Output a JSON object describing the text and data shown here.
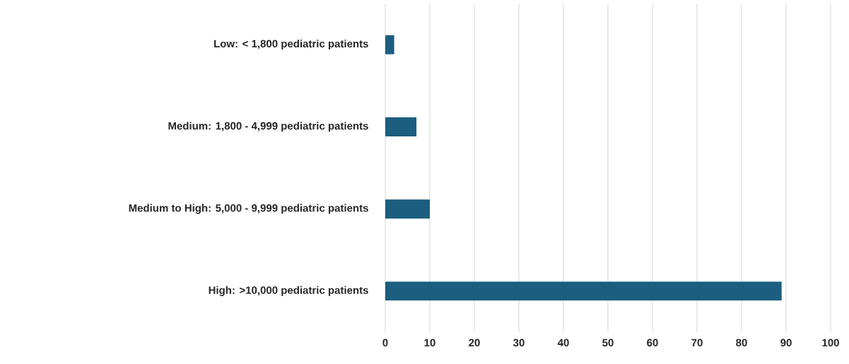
{
  "chart_data": {
    "type": "bar",
    "orientation": "horizontal",
    "categories": [
      "Low: < 1,800 pediatric patients",
      "Medium: 1,800 - 4,999 pediatric patients",
      "Medium to High: 5,000 - 9,999 pediatric patients",
      "High: >10,000 pediatric patients"
    ],
    "values": [
      2,
      7,
      10,
      89
    ],
    "color": "#1b5e80",
    "xlim": [
      0,
      100
    ],
    "xticks": [
      0,
      10,
      20,
      30,
      40,
      50,
      60,
      70,
      80,
      90,
      100
    ],
    "grid": "x"
  }
}
